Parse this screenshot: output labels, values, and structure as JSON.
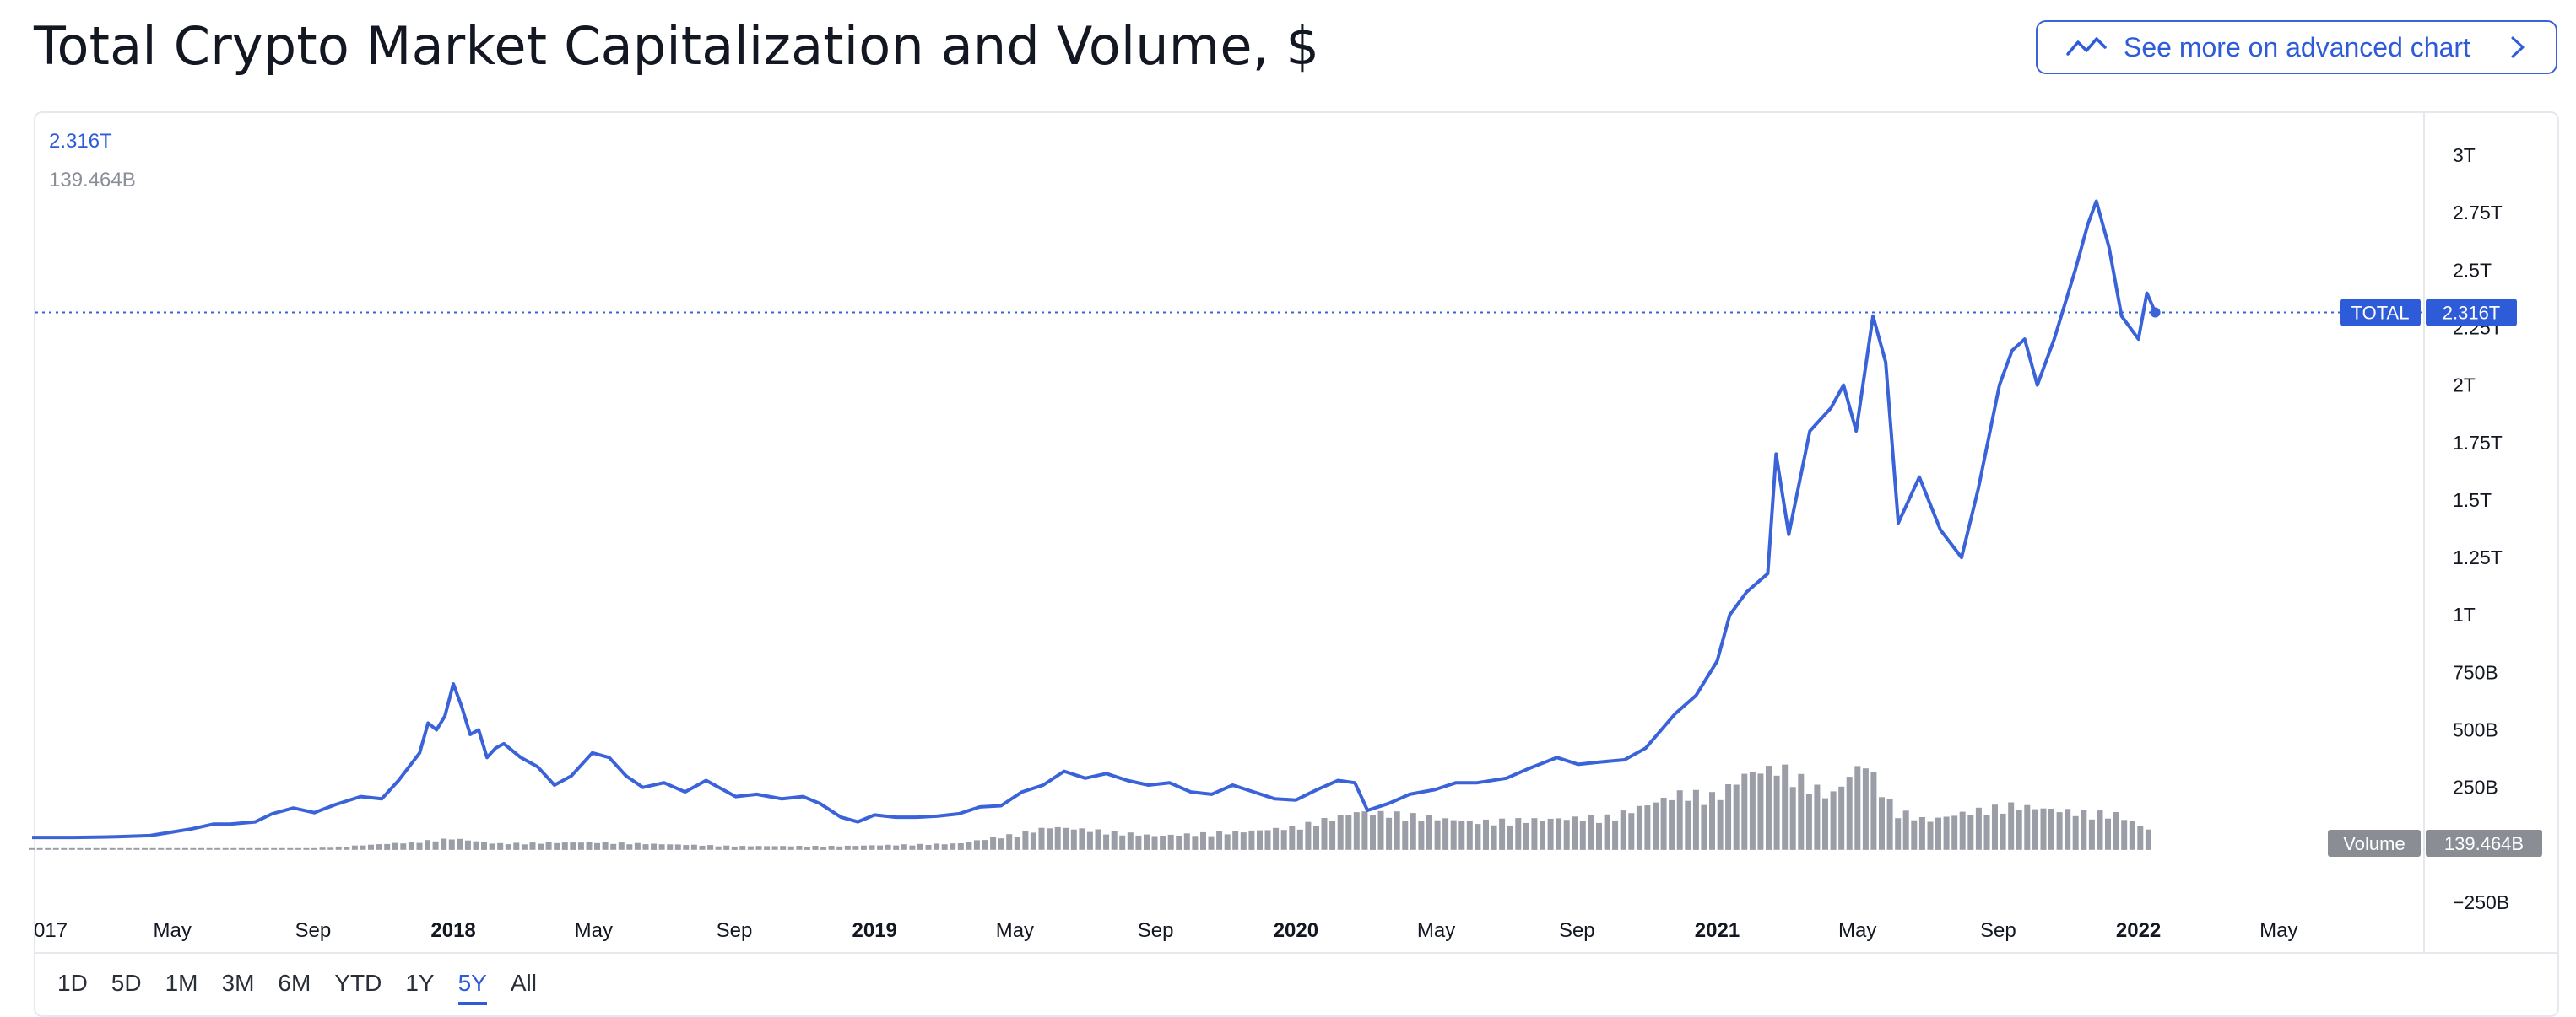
{
  "page": {
    "title": "Total Crypto Market Capitalization and Volume, $",
    "advanced_button_label": "See more on advanced chart"
  },
  "legend": {
    "price_value": "2.316T",
    "volume_value": "139.464B"
  },
  "badges": {
    "total_label": "TOTAL",
    "total_value": "2.316T",
    "volume_label": "Volume",
    "volume_value": "139.464B"
  },
  "range_buttons": [
    {
      "label": "1D",
      "active": false
    },
    {
      "label": "5D",
      "active": false
    },
    {
      "label": "1M",
      "active": false
    },
    {
      "label": "3M",
      "active": false
    },
    {
      "label": "6M",
      "active": false
    },
    {
      "label": "YTD",
      "active": false
    },
    {
      "label": "1Y",
      "active": false
    },
    {
      "label": "5Y",
      "active": true
    },
    {
      "label": "All",
      "active": false
    }
  ],
  "colors": {
    "line": "#3a62d9",
    "volume_bar": "#9b9ea6",
    "badge_blue": "#2e5bd8",
    "badge_gray": "#8a8d94",
    "axis_text": "#131722"
  },
  "chart_data": {
    "type": "line",
    "title": "Total Crypto Market Capitalization and Volume, $",
    "x_tick_labels": [
      {
        "label": "017",
        "t": 2017.0,
        "bold": false
      },
      {
        "label": "May",
        "t": 2017.333,
        "bold": false
      },
      {
        "label": "Sep",
        "t": 2017.667,
        "bold": false
      },
      {
        "label": "2018",
        "t": 2018.0,
        "bold": true
      },
      {
        "label": "May",
        "t": 2018.333,
        "bold": false
      },
      {
        "label": "Sep",
        "t": 2018.667,
        "bold": false
      },
      {
        "label": "2019",
        "t": 2019.0,
        "bold": true
      },
      {
        "label": "May",
        "t": 2019.333,
        "bold": false
      },
      {
        "label": "Sep",
        "t": 2019.667,
        "bold": false
      },
      {
        "label": "2020",
        "t": 2020.0,
        "bold": true
      },
      {
        "label": "May",
        "t": 2020.333,
        "bold": false
      },
      {
        "label": "Sep",
        "t": 2020.667,
        "bold": false
      },
      {
        "label": "2021",
        "t": 2021.0,
        "bold": true
      },
      {
        "label": "May",
        "t": 2021.333,
        "bold": false
      },
      {
        "label": "Sep",
        "t": 2021.667,
        "bold": false
      },
      {
        "label": "2022",
        "t": 2022.0,
        "bold": true
      },
      {
        "label": "May",
        "t": 2022.333,
        "bold": false
      }
    ],
    "y_tick_labels": [
      {
        "label": "3T",
        "v": 3000
      },
      {
        "label": "2.75T",
        "v": 2750
      },
      {
        "label": "2.5T",
        "v": 2500
      },
      {
        "label": "2.25T",
        "v": 2250
      },
      {
        "label": "2T",
        "v": 2000
      },
      {
        "label": "1.75T",
        "v": 1750
      },
      {
        "label": "1.5T",
        "v": 1500
      },
      {
        "label": "1.25T",
        "v": 1250
      },
      {
        "label": "1T",
        "v": 1000
      },
      {
        "label": "750B",
        "v": 750
      },
      {
        "label": "500B",
        "v": 500
      },
      {
        "label": "250B",
        "v": 250
      },
      {
        "label": "−250B",
        "v": -250
      }
    ],
    "ylim": [
      -250,
      3000
    ],
    "y_unit": "billions USD",
    "xlim": [
      2017.0,
      2022.67
    ],
    "last_value": 2316,
    "series": [
      {
        "name": "TOTAL",
        "points": [
          [
            2017.0,
            32
          ],
          [
            2017.1,
            32
          ],
          [
            2017.2,
            35
          ],
          [
            2017.28,
            40
          ],
          [
            2017.33,
            55
          ],
          [
            2017.38,
            70
          ],
          [
            2017.43,
            90
          ],
          [
            2017.47,
            90
          ],
          [
            2017.53,
            100
          ],
          [
            2017.57,
            135
          ],
          [
            2017.62,
            160
          ],
          [
            2017.67,
            140
          ],
          [
            2017.72,
            175
          ],
          [
            2017.78,
            210
          ],
          [
            2017.83,
            200
          ],
          [
            2017.87,
            280
          ],
          [
            2017.92,
            400
          ],
          [
            2017.94,
            530
          ],
          [
            2017.96,
            500
          ],
          [
            2017.98,
            560
          ],
          [
            2018.0,
            700
          ],
          [
            2018.02,
            600
          ],
          [
            2018.04,
            480
          ],
          [
            2018.06,
            500
          ],
          [
            2018.08,
            380
          ],
          [
            2018.1,
            420
          ],
          [
            2018.12,
            440
          ],
          [
            2018.16,
            380
          ],
          [
            2018.2,
            340
          ],
          [
            2018.24,
            260
          ],
          [
            2018.28,
            300
          ],
          [
            2018.33,
            400
          ],
          [
            2018.37,
            380
          ],
          [
            2018.41,
            300
          ],
          [
            2018.45,
            250
          ],
          [
            2018.5,
            270
          ],
          [
            2018.55,
            230
          ],
          [
            2018.6,
            280
          ],
          [
            2018.64,
            240
          ],
          [
            2018.67,
            210
          ],
          [
            2018.72,
            220
          ],
          [
            2018.78,
            200
          ],
          [
            2018.83,
            210
          ],
          [
            2018.87,
            180
          ],
          [
            2018.92,
            120
          ],
          [
            2018.96,
            100
          ],
          [
            2019.0,
            130
          ],
          [
            2019.05,
            120
          ],
          [
            2019.1,
            120
          ],
          [
            2019.15,
            125
          ],
          [
            2019.2,
            135
          ],
          [
            2019.25,
            165
          ],
          [
            2019.3,
            170
          ],
          [
            2019.35,
            230
          ],
          [
            2019.4,
            260
          ],
          [
            2019.45,
            320
          ],
          [
            2019.5,
            290
          ],
          [
            2019.55,
            310
          ],
          [
            2019.6,
            280
          ],
          [
            2019.65,
            260
          ],
          [
            2019.7,
            270
          ],
          [
            2019.75,
            230
          ],
          [
            2019.8,
            220
          ],
          [
            2019.85,
            260
          ],
          [
            2019.9,
            230
          ],
          [
            2019.95,
            200
          ],
          [
            2020.0,
            195
          ],
          [
            2020.05,
            240
          ],
          [
            2020.1,
            280
          ],
          [
            2020.14,
            270
          ],
          [
            2020.17,
            150
          ],
          [
            2020.22,
            180
          ],
          [
            2020.27,
            220
          ],
          [
            2020.33,
            240
          ],
          [
            2020.38,
            270
          ],
          [
            2020.43,
            270
          ],
          [
            2020.5,
            290
          ],
          [
            2020.55,
            330
          ],
          [
            2020.62,
            380
          ],
          [
            2020.67,
            350
          ],
          [
            2020.72,
            360
          ],
          [
            2020.78,
            370
          ],
          [
            2020.83,
            420
          ],
          [
            2020.9,
            570
          ],
          [
            2020.95,
            650
          ],
          [
            2021.0,
            800
          ],
          [
            2021.03,
            1000
          ],
          [
            2021.07,
            1100
          ],
          [
            2021.12,
            1180
          ],
          [
            2021.14,
            1700
          ],
          [
            2021.17,
            1350
          ],
          [
            2021.22,
            1800
          ],
          [
            2021.27,
            1900
          ],
          [
            2021.3,
            2000
          ],
          [
            2021.33,
            1800
          ],
          [
            2021.37,
            2300
          ],
          [
            2021.4,
            2100
          ],
          [
            2021.43,
            1400
          ],
          [
            2021.48,
            1600
          ],
          [
            2021.53,
            1370
          ],
          [
            2021.58,
            1250
          ],
          [
            2021.62,
            1550
          ],
          [
            2021.67,
            2000
          ],
          [
            2021.7,
            2150
          ],
          [
            2021.73,
            2200
          ],
          [
            2021.76,
            2000
          ],
          [
            2021.8,
            2200
          ],
          [
            2021.85,
            2500
          ],
          [
            2021.88,
            2700
          ],
          [
            2021.9,
            2800
          ],
          [
            2021.93,
            2600
          ],
          [
            2021.96,
            2300
          ],
          [
            2022.0,
            2200
          ],
          [
            2022.02,
            2400
          ],
          [
            2022.04,
            2316
          ]
        ]
      },
      {
        "name": "Volume",
        "points": [
          [
            2017.0,
            3
          ],
          [
            2017.33,
            6
          ],
          [
            2017.67,
            12
          ],
          [
            2017.9,
            60
          ],
          [
            2018.0,
            90
          ],
          [
            2018.1,
            50
          ],
          [
            2018.33,
            60
          ],
          [
            2018.67,
            30
          ],
          [
            2018.92,
            30
          ],
          [
            2019.2,
            50
          ],
          [
            2019.33,
            120
          ],
          [
            2019.42,
            180
          ],
          [
            2019.5,
            160
          ],
          [
            2019.67,
            110
          ],
          [
            2019.9,
            150
          ],
          [
            2020.0,
            180
          ],
          [
            2020.15,
            300
          ],
          [
            2020.25,
            280
          ],
          [
            2020.42,
            220
          ],
          [
            2020.58,
            240
          ],
          [
            2020.75,
            260
          ],
          [
            2020.92,
            450
          ],
          [
            2021.0,
            420
          ],
          [
            2021.07,
            600
          ],
          [
            2021.15,
            650
          ],
          [
            2021.27,
            420
          ],
          [
            2021.35,
            700
          ],
          [
            2021.42,
            320
          ],
          [
            2021.5,
            230
          ],
          [
            2021.6,
            300
          ],
          [
            2021.7,
            350
          ],
          [
            2021.85,
            300
          ],
          [
            2021.95,
            280
          ],
          [
            2022.04,
            139
          ]
        ]
      }
    ]
  }
}
